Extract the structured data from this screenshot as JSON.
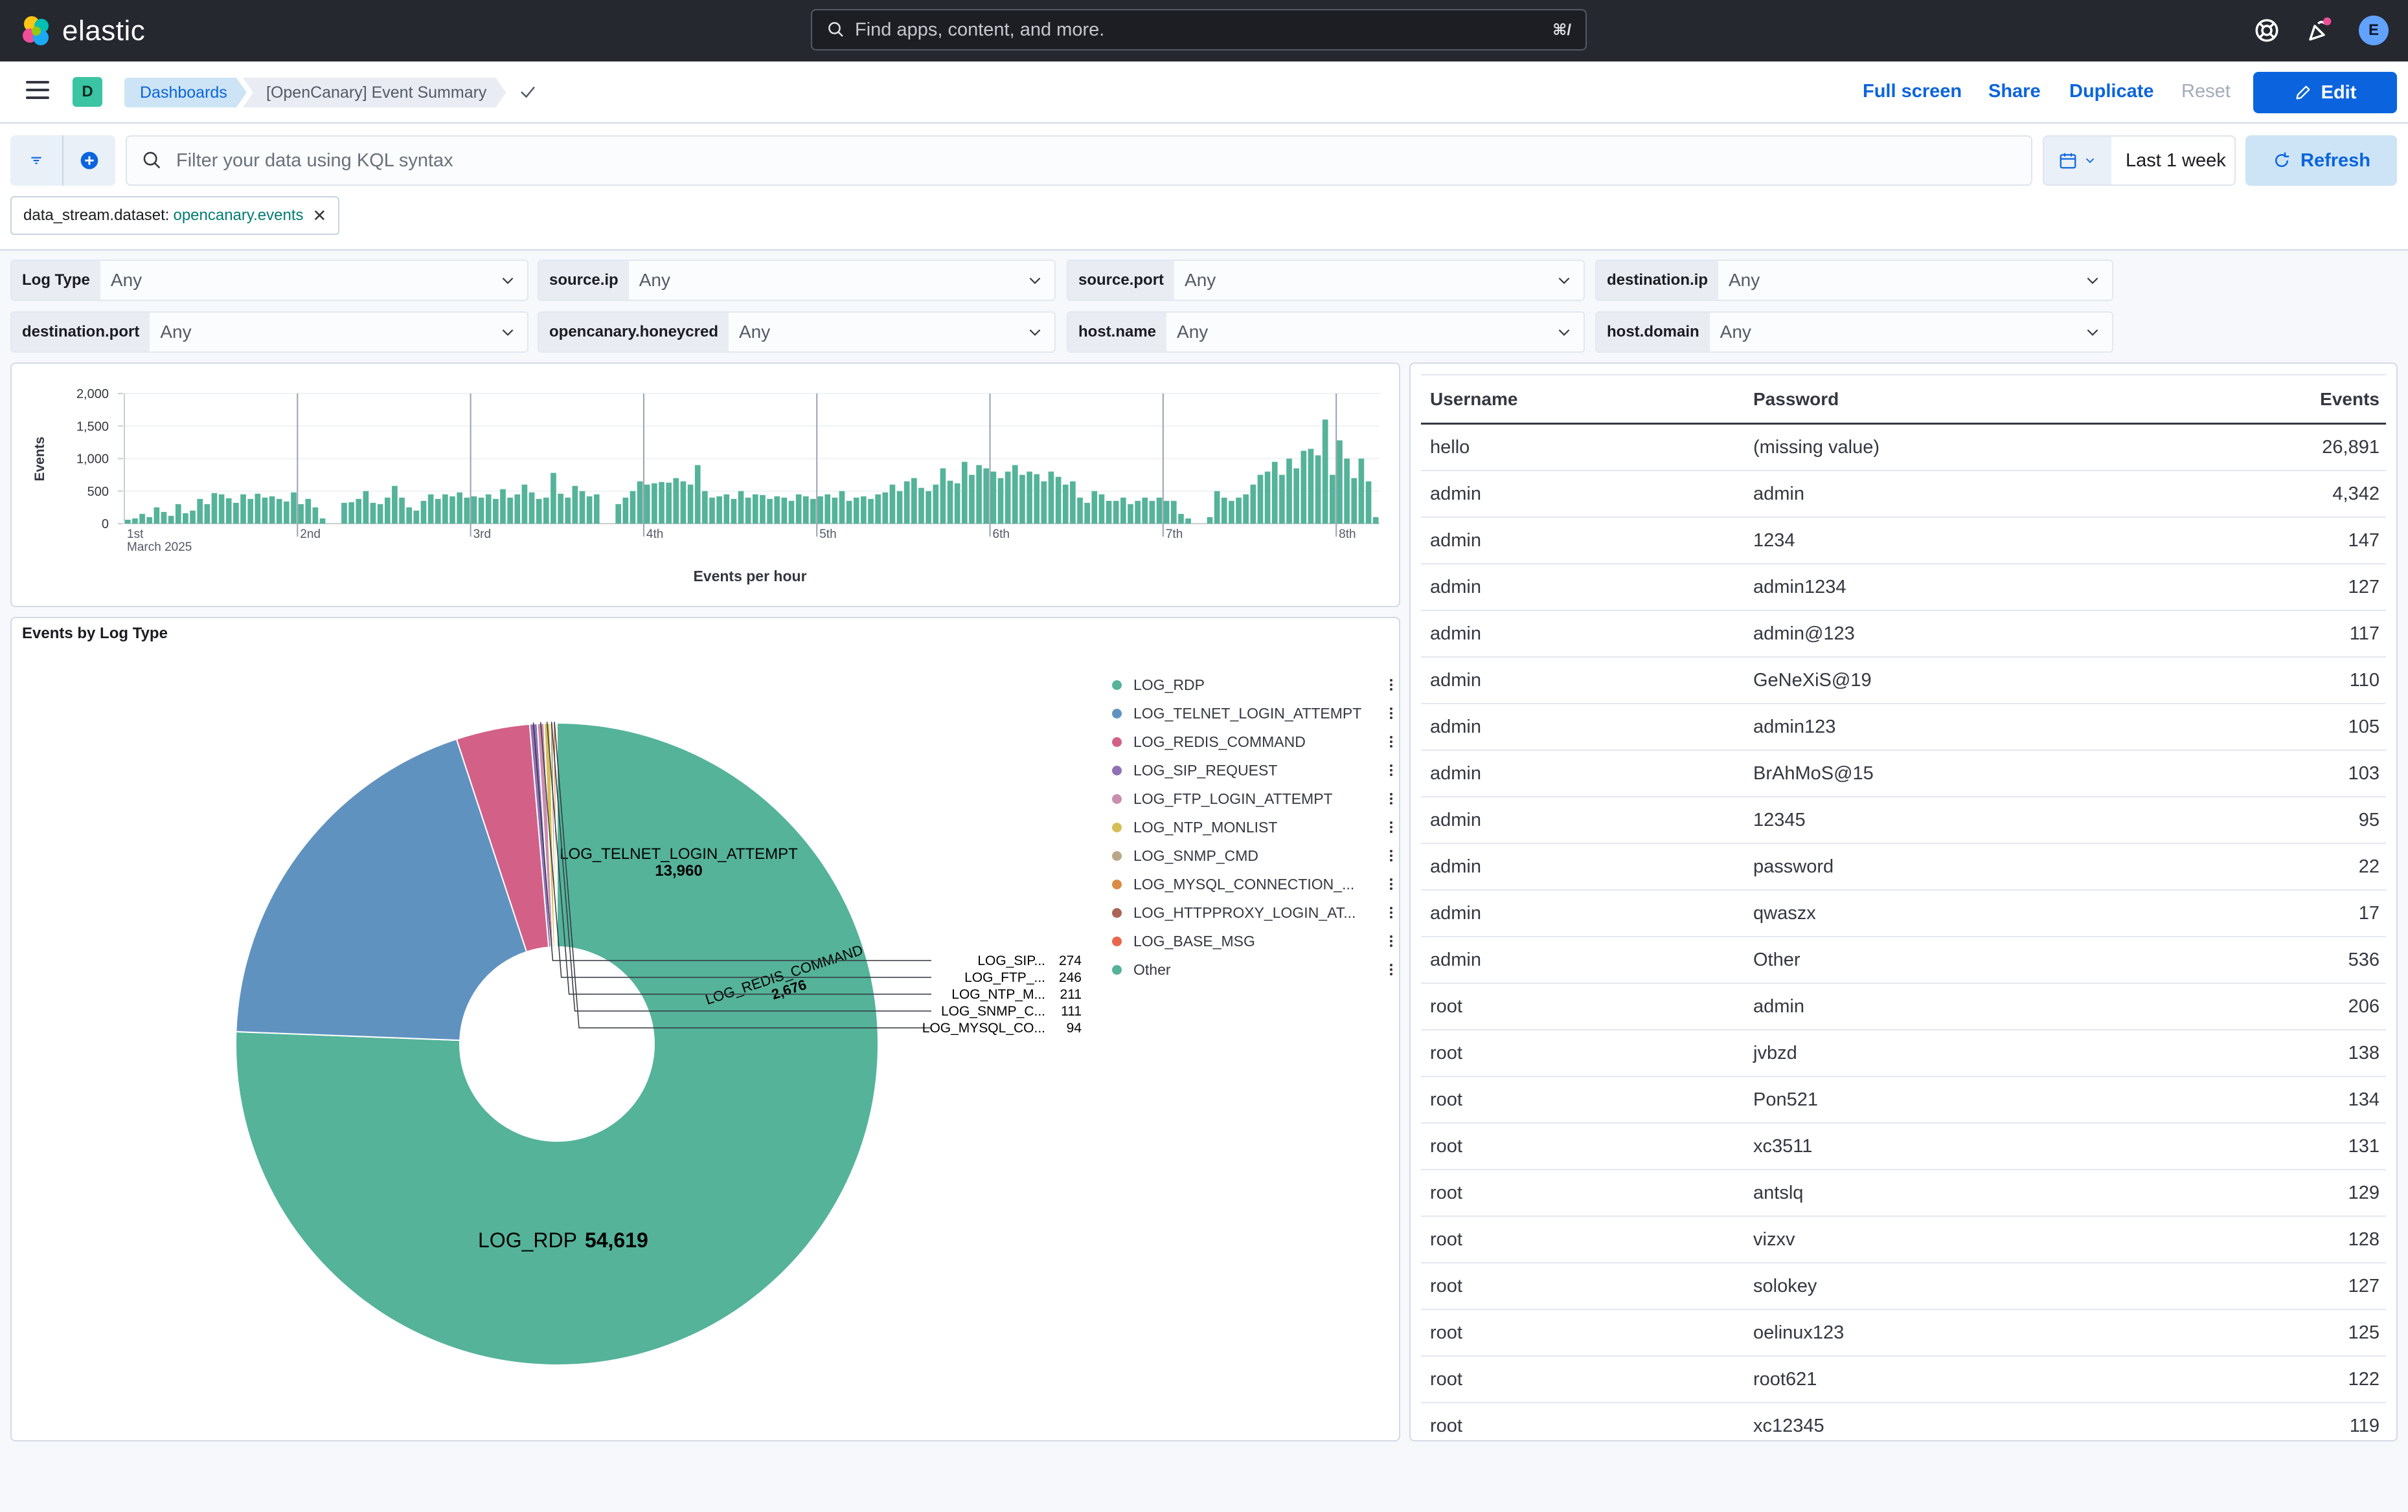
{
  "header": {
    "brand": "elastic",
    "search_placeholder": "Find apps, content, and more.",
    "search_shortcut": "⌘/",
    "avatar_initial": "E"
  },
  "breadcrumbs": {
    "space_initial": "D",
    "items": [
      "Dashboards",
      "[OpenCanary] Event Summary"
    ]
  },
  "actions": {
    "full_screen": "Full screen",
    "share": "Share",
    "duplicate": "Duplicate",
    "reset": "Reset",
    "edit": "Edit"
  },
  "query": {
    "placeholder": "Filter your data using KQL syntax",
    "time_range": "Last 1 week",
    "refresh": "Refresh",
    "filter_pill": {
      "field": "data_stream.dataset:",
      "value": "opencanary.events"
    }
  },
  "controls": [
    {
      "label": "Log Type",
      "value": "Any"
    },
    {
      "label": "source.ip",
      "value": "Any"
    },
    {
      "label": "source.port",
      "value": "Any"
    },
    {
      "label": "destination.ip",
      "value": "Any"
    },
    {
      "label": "destination.port",
      "value": "Any"
    },
    {
      "label": "opencanary.honeycred",
      "value": "Any"
    },
    {
      "label": "host.name",
      "value": "Any"
    },
    {
      "label": "host.domain",
      "value": "Any"
    }
  ],
  "histogram": {
    "title": "Events per hour",
    "ylabel": "Events",
    "y_ticks": [
      "2,000",
      "1,500",
      "1,000",
      "500",
      "0"
    ],
    "x_ticks": [
      "1st",
      "2nd",
      "3rd",
      "4th",
      "5th",
      "6th",
      "7th",
      "8th"
    ],
    "x_subtitle": "March 2025",
    "bar_color": "#54b399"
  },
  "chart_data": [
    {
      "type": "bar",
      "title": "",
      "xlabel": "Events per hour",
      "ylabel": "Events",
      "ylim": [
        0,
        2000
      ],
      "x_range": [
        "2025-03-01T00:00",
        "2025-03-08T19:00"
      ],
      "x_interval": "1 hour",
      "values": [
        60,
        80,
        150,
        100,
        250,
        180,
        120,
        300,
        160,
        200,
        380,
        300,
        470,
        450,
        390,
        320,
        450,
        380,
        460,
        400,
        420,
        380,
        340,
        480,
        300,
        380,
        250,
        80,
        0,
        0,
        320,
        330,
        380,
        500,
        320,
        300,
        400,
        580,
        400,
        250,
        200,
        350,
        450,
        380,
        450,
        420,
        480,
        400,
        420,
        400,
        450,
        380,
        530,
        400,
        450,
        600,
        480,
        380,
        400,
        780,
        460,
        400,
        580,
        500,
        420,
        450,
        0,
        0,
        300,
        400,
        500,
        650,
        600,
        620,
        640,
        630,
        700,
        650,
        600,
        900,
        500,
        400,
        420,
        450,
        380,
        500,
        400,
        450,
        440,
        380,
        420,
        400,
        350,
        450,
        420,
        380,
        420,
        450,
        400,
        500,
        350,
        400,
        420,
        380,
        450,
        480,
        600,
        500,
        650,
        700,
        550,
        500,
        600,
        850,
        660,
        620,
        950,
        750,
        900,
        850,
        800,
        700,
        800,
        900,
        750,
        800,
        760,
        650,
        800,
        720,
        600,
        650,
        400,
        320,
        500,
        450,
        350,
        350,
        400,
        300,
        350,
        400,
        350,
        400,
        350,
        350,
        150,
        80,
        0,
        0,
        100,
        500,
        400,
        350,
        400,
        450,
        600,
        750,
        800,
        950,
        750,
        1000,
        850,
        1120,
        1150,
        1050,
        1600,
        750,
        1280,
        1000,
        700,
        1000,
        650,
        100
      ]
    },
    {
      "type": "pie",
      "title": "Events by Log Type",
      "categories": [
        "LOG_RDP",
        "LOG_TELNET_LOGIN_ATTEMPT",
        "LOG_REDIS_COMMAND",
        "LOG_SIP_REQUEST",
        "LOG_FTP_LOGIN_ATTEMPT",
        "LOG_NTP_MONLIST",
        "LOG_SNMP_CMD",
        "LOG_MYSQL_CONNECTION_SECURE",
        "LOG_HTTPPROXY_LOGIN_ATTEMPT",
        "LOG_BASE_MSG",
        "Other"
      ],
      "values": [
        54619,
        13960,
        2676,
        274,
        246,
        211,
        111,
        94,
        30,
        10,
        5
      ],
      "colors": [
        "#54b399",
        "#6092c0",
        "#d36086",
        "#9170b8",
        "#ca8eae",
        "#d6bf57",
        "#b9a888",
        "#da8b45",
        "#aa6556",
        "#e7664c",
        "#54b399"
      ]
    }
  ],
  "pie": {
    "title": "Events by Log Type",
    "labels": {
      "rdp": "LOG_RDP",
      "rdp_val": "54,619",
      "telnet": "LOG_TELNET_LOGIN_ATTEMPT",
      "telnet_val": "13,960",
      "redis": "LOG_REDIS_COMMAND",
      "redis_val": "2,676",
      "sip": "LOG_SIP...",
      "sip_val": "274",
      "ftp": "LOG_FTP_...",
      "ftp_val": "246",
      "ntp": "LOG_NTP_M...",
      "ntp_val": "211",
      "snmp": "LOG_SNMP_C...",
      "snmp_val": "111",
      "mysql": "LOG_MYSQL_CO...",
      "mysql_val": "94"
    },
    "legend": [
      {
        "label": "LOG_RDP",
        "color": "#54b399"
      },
      {
        "label": "LOG_TELNET_LOGIN_ATTEMPT",
        "color": "#6092c0"
      },
      {
        "label": "LOG_REDIS_COMMAND",
        "color": "#d36086"
      },
      {
        "label": "LOG_SIP_REQUEST",
        "color": "#9170b8"
      },
      {
        "label": "LOG_FTP_LOGIN_ATTEMPT",
        "color": "#ca8eae"
      },
      {
        "label": "LOG_NTP_MONLIST",
        "color": "#d6bf57"
      },
      {
        "label": "LOG_SNMP_CMD",
        "color": "#b9a888"
      },
      {
        "label": "LOG_MYSQL_CONNECTION_...",
        "color": "#da8b45"
      },
      {
        "label": "LOG_HTTPPROXY_LOGIN_AT...",
        "color": "#aa6556"
      },
      {
        "label": "LOG_BASE_MSG",
        "color": "#e7664c"
      },
      {
        "label": "Other",
        "color": "#54b399"
      }
    ]
  },
  "table": {
    "headers": [
      "Username",
      "Password",
      "Events"
    ],
    "rows": [
      [
        "hello",
        "(missing value)",
        "26,891"
      ],
      [
        "admin",
        "admin",
        "4,342"
      ],
      [
        "admin",
        "1234",
        "147"
      ],
      [
        "admin",
        "admin1234",
        "127"
      ],
      [
        "admin",
        "admin@123",
        "117"
      ],
      [
        "admin",
        "GeNeXiS@19",
        "110"
      ],
      [
        "admin",
        "admin123",
        "105"
      ],
      [
        "admin",
        "BrAhMoS@15",
        "103"
      ],
      [
        "admin",
        "12345",
        "95"
      ],
      [
        "admin",
        "password",
        "22"
      ],
      [
        "admin",
        "qwaszx",
        "17"
      ],
      [
        "admin",
        "Other",
        "536"
      ],
      [
        "root",
        "admin",
        "206"
      ],
      [
        "root",
        "jvbzd",
        "138"
      ],
      [
        "root",
        "Pon521",
        "134"
      ],
      [
        "root",
        "xc3511",
        "131"
      ],
      [
        "root",
        "antslq",
        "129"
      ],
      [
        "root",
        "vizxv",
        "128"
      ],
      [
        "root",
        "solokey",
        "127"
      ],
      [
        "root",
        "oelinux123",
        "125"
      ],
      [
        "root",
        "root621",
        "122"
      ],
      [
        "root",
        "xc12345",
        "119"
      ]
    ]
  }
}
